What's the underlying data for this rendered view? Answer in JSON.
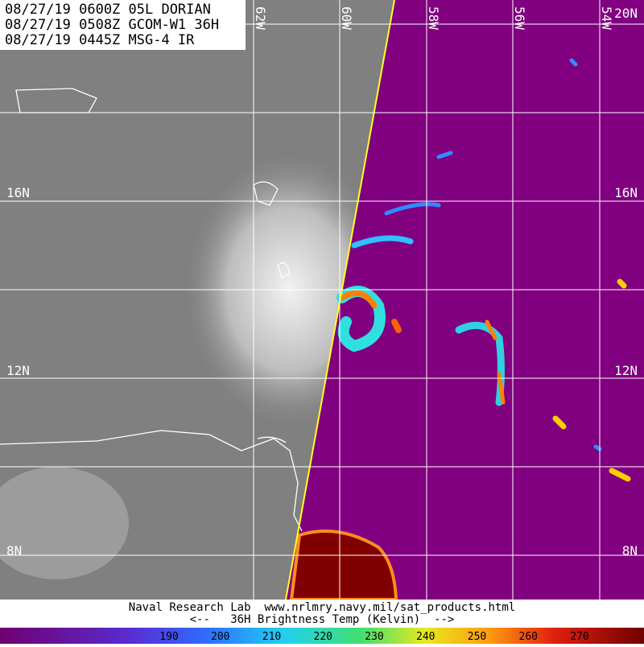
{
  "header": {
    "lines": [
      "08/27/19 0600Z 05L DORIAN",
      "08/27/19 0508Z GCOM-W1 36H",
      "08/27/19 0445Z MSG-4 IR"
    ]
  },
  "grid": {
    "lon_labels": [
      "62W",
      "60W",
      "58W",
      "56W",
      "54W"
    ],
    "lat_labels": [
      "20N",
      "16N",
      "12N",
      "8N"
    ]
  },
  "footer": {
    "lines": [
      "Naval Research Lab  www.nrlmry.navy.mil/sat_products.html",
      "<--   36H Brightness Temp (Kelvin)  -->"
    ]
  },
  "colorbar": {
    "ticks": [
      190,
      200,
      210,
      220,
      230,
      240,
      250,
      260,
      270
    ]
  }
}
